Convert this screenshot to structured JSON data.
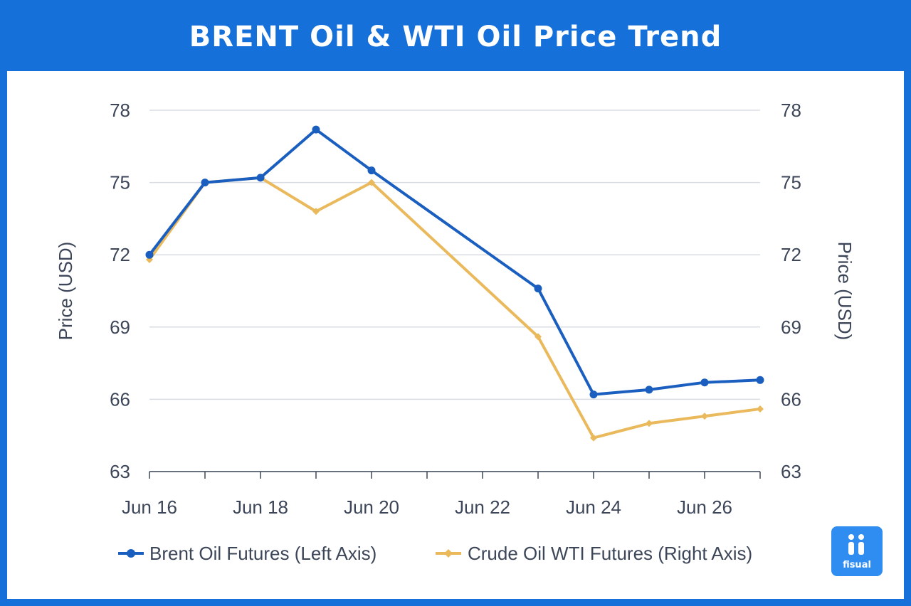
{
  "header": {
    "title": "BRENT Oil & WTI Oil Price Trend"
  },
  "logo": {
    "text": "fisual"
  },
  "colors": {
    "frame": "#1670d9",
    "brent": "#1a5fbf",
    "wti": "#e9b95c"
  },
  "chart_data": {
    "type": "line",
    "title": "BRENT Oil & WTI Oil Price Trend",
    "x": [
      "Jun 16",
      "Jun 17",
      "Jun 18",
      "Jun 19",
      "Jun 20",
      "Jun 23",
      "Jun 24",
      "Jun 25",
      "Jun 26",
      "Jun 27"
    ],
    "x_tick_labels": [
      "Jun 16",
      "Jun 18",
      "Jun 20",
      "Jun 22",
      "Jun 24",
      "Jun 26"
    ],
    "ylabel_left": "Price (USD)",
    "ylabel_right": "Price (USD)",
    "ylim": [
      63,
      78
    ],
    "y_ticks": [
      63,
      66,
      69,
      72,
      75,
      78
    ],
    "grid": true,
    "legend_position": "bottom",
    "series": [
      {
        "name": "Brent Oil Futures (Left Axis)",
        "axis": "left",
        "marker": "circle",
        "values": [
          72.0,
          75.0,
          75.2,
          77.2,
          75.5,
          70.6,
          66.2,
          66.4,
          66.7,
          66.8
        ]
      },
      {
        "name": "Crude Oil WTI Futures (Right Axis)",
        "axis": "right",
        "marker": "diamond",
        "values": [
          71.8,
          75.0,
          75.2,
          73.8,
          75.0,
          68.6,
          64.4,
          65.0,
          65.3,
          65.6
        ]
      }
    ]
  }
}
